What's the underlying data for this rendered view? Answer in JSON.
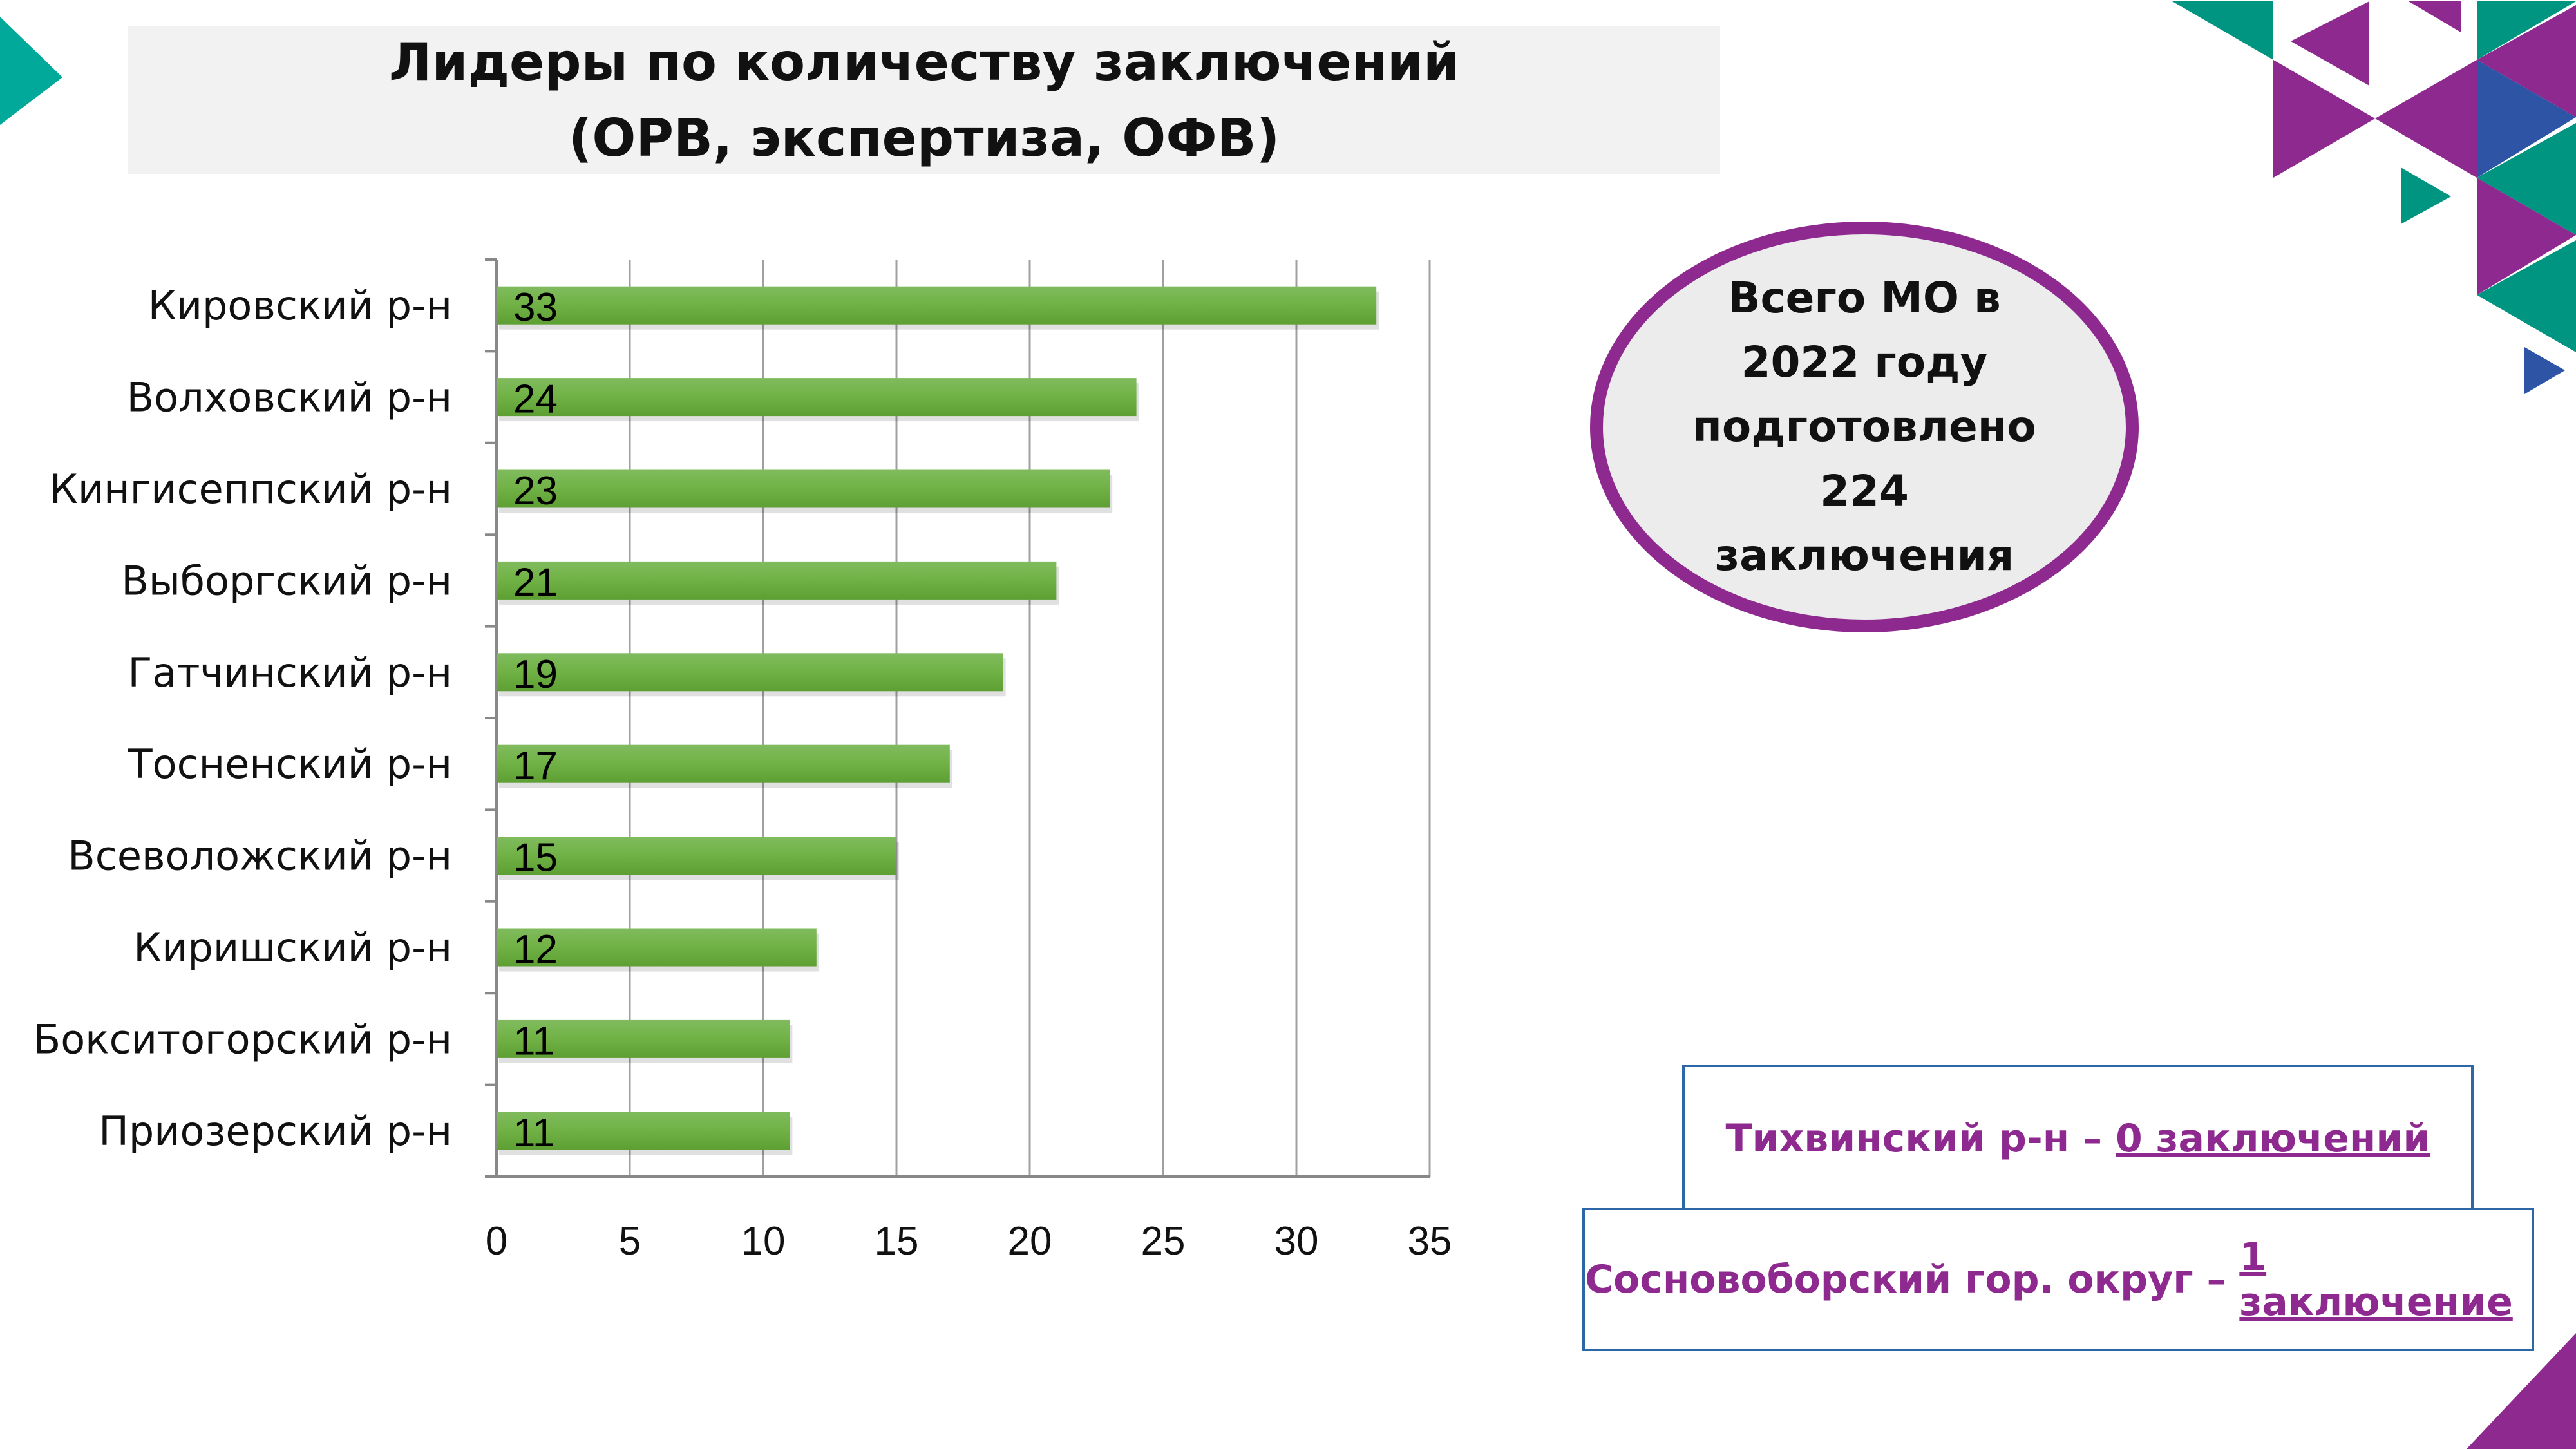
{
  "title": {
    "line1": "Лидеры по количеству заключений",
    "line2": "(ОРВ, экспертиза, ОФВ)"
  },
  "summary": {
    "lines": [
      "Всего МО в",
      "2022 году",
      "подготовлено",
      "224",
      "заключения"
    ]
  },
  "notes": [
    {
      "prefix": "Тихвинский р-н – ",
      "value": "0 заключений"
    },
    {
      "prefix": "Сосновоборский гор. округ – ",
      "value": "1 заключение"
    }
  ],
  "colors": {
    "bar": "#6aae3e",
    "purple": "#8e2a8f",
    "teal": "#009580",
    "blue": "#2e55a5",
    "grid": "#a0a0a0"
  },
  "chart_data": {
    "type": "bar",
    "orientation": "horizontal",
    "categories": [
      "Кировский р-н",
      "Волховский р-н",
      "Кингисеппский р-н",
      "Выборгский р-н",
      "Гатчинский р-н",
      "Тосненский р-н",
      "Всеволожский р-н",
      "Киришский р-н",
      "Бокситогорский р-н",
      "Приозерский р-н"
    ],
    "values": [
      33,
      24,
      23,
      21,
      19,
      17,
      15,
      12,
      11,
      11
    ],
    "xlim": [
      0,
      35
    ],
    "xticks": [
      "0",
      "5",
      "10",
      "15",
      "20",
      "25",
      "30",
      "35"
    ],
    "grid": true,
    "data_labels": true,
    "title": "",
    "xlabel": "",
    "ylabel": ""
  }
}
